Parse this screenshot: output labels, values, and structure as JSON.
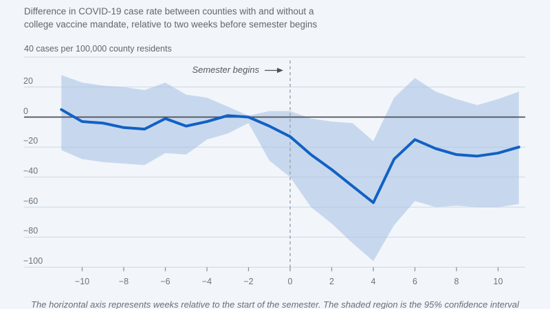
{
  "header": {
    "title_line1": "Difference in COVID-19 case rate between counties with and without a",
    "title_line2": "college vaccine mandate, relative to two weeks before semester begins"
  },
  "chart": {
    "unit_label": "40 cases per 100,000 county residents",
    "annotation": {
      "label": "Semester begins"
    },
    "caption": "The horizontal axis represents weeks relative to the start of the semester. The shaded region is the 95% confidence interval"
  },
  "colors": {
    "background": "#f2f6fb",
    "band": "#c7d8ee",
    "line": "#1261c4",
    "zero_line": "#4c4e53",
    "gridline": "#aebdd0",
    "dashed_line": "#9aa1ab",
    "arrow": "#4c4f55",
    "title_text": "#63666b",
    "tick_text": "#6d7278"
  },
  "chart_data": {
    "type": "line",
    "title": "Difference in COVID-19 case rate between counties with and without a college vaccine mandate, relative to two weeks before semester begins",
    "xlabel": "",
    "ylabel": "40 cases per 100,000 county residents",
    "x": [
      -11,
      -10,
      -9,
      -8,
      -7,
      -6,
      -5,
      -4,
      -3,
      -2,
      -1,
      0,
      1,
      2,
      3,
      4,
      5,
      6,
      7,
      8,
      9,
      10,
      11
    ],
    "series": [
      {
        "name": "Difference in COVID-19 case rate (cases per 100,000 county residents)",
        "values": [
          5,
          -3,
          -4,
          -7,
          -8,
          -1,
          -6,
          -3,
          1,
          0,
          -6,
          -13,
          -25,
          -35,
          -46,
          -57,
          -28,
          -15,
          -21,
          -25,
          -26,
          -24,
          -20
        ]
      }
    ],
    "band": {
      "name": "95% confidence interval",
      "upper": [
        28,
        23,
        21,
        20,
        18,
        23,
        15,
        13,
        7,
        1,
        4,
        4,
        -1,
        -3,
        -4,
        -16,
        13,
        26,
        17,
        12,
        8,
        12,
        17
      ],
      "lower": [
        -22,
        -28,
        -30,
        -31,
        -32,
        -24,
        -25,
        -15,
        -11,
        -4,
        -29,
        -40,
        -60,
        -71,
        -84,
        -96,
        -72,
        -56,
        -60,
        -59,
        -60,
        -60,
        -58
      ]
    },
    "x_ticks": [
      {
        "value": -10,
        "label": "−10"
      },
      {
        "value": -8,
        "label": "−8"
      },
      {
        "value": -6,
        "label": "−6"
      },
      {
        "value": -4,
        "label": "−4"
      },
      {
        "value": -2,
        "label": "−2"
      },
      {
        "value": 0,
        "label": "0"
      },
      {
        "value": 2,
        "label": "2"
      },
      {
        "value": 4,
        "label": "4"
      },
      {
        "value": 6,
        "label": "6"
      },
      {
        "value": 8,
        "label": "8"
      },
      {
        "value": 10,
        "label": "10"
      }
    ],
    "y_ticks": [
      {
        "value": 20,
        "label": "20"
      },
      {
        "value": 0,
        "label": "0"
      },
      {
        "value": -20,
        "label": "−20"
      },
      {
        "value": -40,
        "label": "−40"
      },
      {
        "value": -60,
        "label": "−60"
      },
      {
        "value": -80,
        "label": "−80"
      },
      {
        "value": -100,
        "label": "−100"
      }
    ],
    "y_gridline_top_value": 40,
    "xlim": [
      -11,
      11
    ],
    "ylim": [
      -100,
      40
    ],
    "grid": "horizontal",
    "legend": "none",
    "reference_line": {
      "x": 0,
      "label": "Semester begins"
    }
  }
}
